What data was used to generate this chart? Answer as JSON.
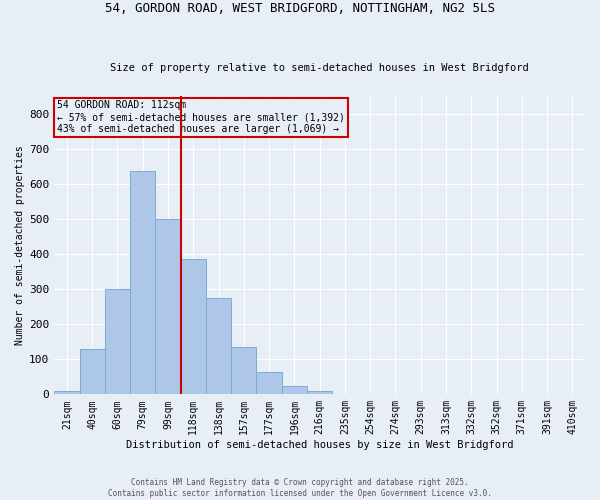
{
  "title1": "54, GORDON ROAD, WEST BRIDGFORD, NOTTINGHAM, NG2 5LS",
  "title2": "Size of property relative to semi-detached houses in West Bridgford",
  "xlabel": "Distribution of semi-detached houses by size in West Bridgford",
  "ylabel": "Number of semi-detached properties",
  "bar_labels": [
    "21sqm",
    "40sqm",
    "60sqm",
    "79sqm",
    "99sqm",
    "118sqm",
    "138sqm",
    "157sqm",
    "177sqm",
    "196sqm",
    "216sqm",
    "235sqm",
    "254sqm",
    "274sqm",
    "293sqm",
    "313sqm",
    "332sqm",
    "352sqm",
    "371sqm",
    "391sqm",
    "410sqm"
  ],
  "bar_values": [
    10,
    130,
    300,
    635,
    500,
    385,
    275,
    135,
    65,
    25,
    10,
    0,
    0,
    0,
    0,
    0,
    0,
    0,
    0,
    0,
    0
  ],
  "red_line_x": 4.5,
  "bar_color": "#aec6e8",
  "bar_edge_color": "#7aadd4",
  "highlight_color": "#cc0000",
  "box_color": "#cc0000",
  "background_color": "#e8eef5",
  "grid_color": "#ffffff",
  "ylim": [
    0,
    850
  ],
  "yticks": [
    0,
    100,
    200,
    300,
    400,
    500,
    600,
    700,
    800
  ],
  "footer": "Contains HM Land Registry data © Crown copyright and database right 2025.\nContains public sector information licensed under the Open Government Licence v3.0.",
  "annotation_text": "54 GORDON ROAD: 112sqm\n← 57% of semi-detached houses are smaller (1,392)\n43% of semi-detached houses are larger (1,069) →"
}
